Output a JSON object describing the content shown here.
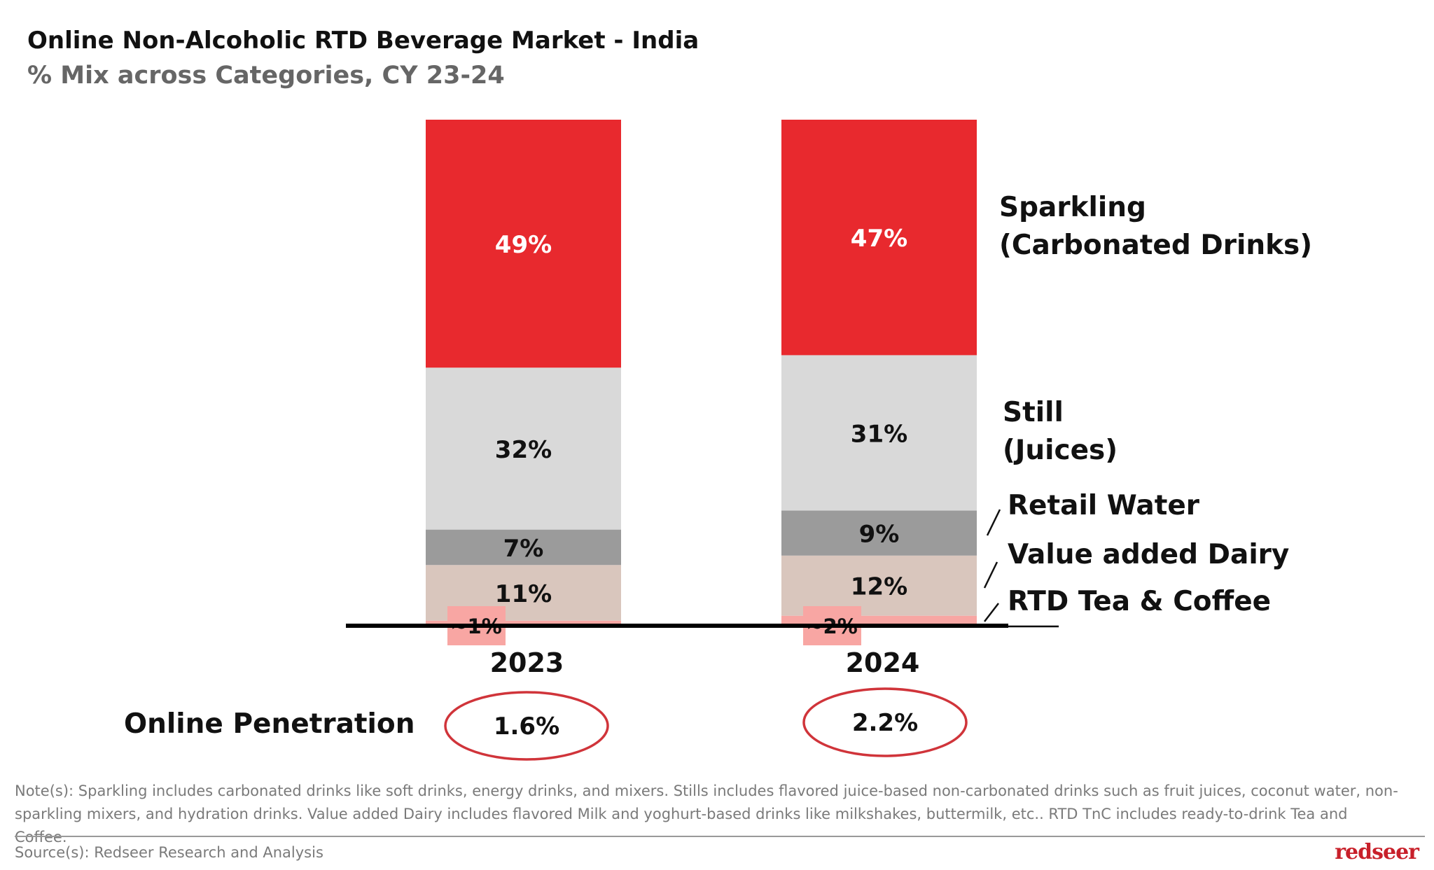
{
  "title": "Online Non-Alcoholic RTD Beverage Market - India",
  "subtitle": "% Mix across Categories, CY 23-24",
  "chart_data": {
    "type": "bar",
    "stacked": true,
    "title": "Online Non-Alcoholic RTD Beverage Market - India",
    "subtitle": "% Mix across Categories, CY 23-24",
    "categories": [
      "2023",
      "2024"
    ],
    "series": [
      {
        "name": "RTD Tea & Coffee",
        "values": [
          1,
          2
        ],
        "labels": [
          "~1%",
          "~2%"
        ],
        "color": "#F8A6A3"
      },
      {
        "name": "Value added Dairy",
        "values": [
          11,
          12
        ],
        "labels": [
          "11%",
          "12%"
        ],
        "color": "#D9C6BD"
      },
      {
        "name": "Retail Water",
        "values": [
          7,
          9
        ],
        "labels": [
          "7%",
          "9%"
        ],
        "color": "#9B9B9B"
      },
      {
        "name": "Still\n(Juices)",
        "values": [
          32,
          31
        ],
        "labels": [
          "32%",
          "31%"
        ],
        "color": "#D9D9D9"
      },
      {
        "name": "Sparkling\n(Carbonated Drinks)",
        "values": [
          49,
          47
        ],
        "labels": [
          "49%",
          "47%"
        ],
        "color": "#E8292E"
      }
    ],
    "legend": "right, direct labels",
    "grid": false
  },
  "penetration": {
    "label": "Online Penetration",
    "values": [
      "1.6%",
      "2.2%"
    ],
    "ring_color": "#D0343A"
  },
  "note": "Note(s): Sparkling includes carbonated drinks like soft drinks, energy drinks, and mixers. Stills includes flavored juice-based non-carbonated drinks such as fruit juices, coconut water, non-sparkling mixers, and hydration drinks. Value added Dairy includes flavored Milk and yoghurt-based drinks like milkshakes, buttermilk, etc.. RTD TnC includes ready-to-drink Tea and Coffee.",
  "source": "Source(s): Redseer Research and Analysis",
  "logo": "redseer"
}
